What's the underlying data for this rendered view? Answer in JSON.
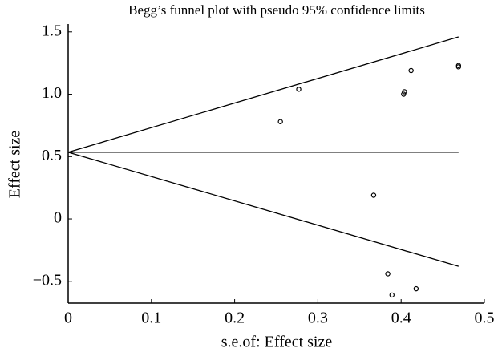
{
  "chart_data": {
    "type": "scatter",
    "title": "Begg’s funnel plot with pseudo 95% confidence limits",
    "xlabel": "s.e.of: Effect size",
    "ylabel": "Effect size",
    "x": [
      0.255,
      0.277,
      0.367,
      0.384,
      0.389,
      0.403,
      0.404,
      0.412,
      0.418,
      0.469,
      0.469
    ],
    "values": [
      0.78,
      1.04,
      0.19,
      -0.44,
      -0.61,
      1.0,
      1.02,
      1.19,
      -0.56,
      1.22,
      1.23
    ],
    "color": "#000000",
    "lines": [
      {
        "x": [
          0,
          0.469
        ],
        "values": [
          0.535,
          0.535
        ]
      },
      {
        "x": [
          0,
          0.469
        ],
        "values": [
          0.535,
          1.46
        ]
      },
      {
        "x": [
          0,
          0.469
        ],
        "values": [
          0.535,
          -0.38
        ]
      }
    ],
    "xlim": [
      0,
      0.5
    ],
    "xticks": [
      0,
      0.1,
      0.2,
      0.3,
      0.4,
      0.5
    ],
    "ylim": [
      -0.675,
      1.563
    ],
    "yticks": [
      {
        "value": -0.5,
        "label": "−0.5"
      },
      0,
      0.5,
      {
        "value": 1.0,
        "label": "1.0"
      },
      1.5
    ],
    "grid": false
  }
}
